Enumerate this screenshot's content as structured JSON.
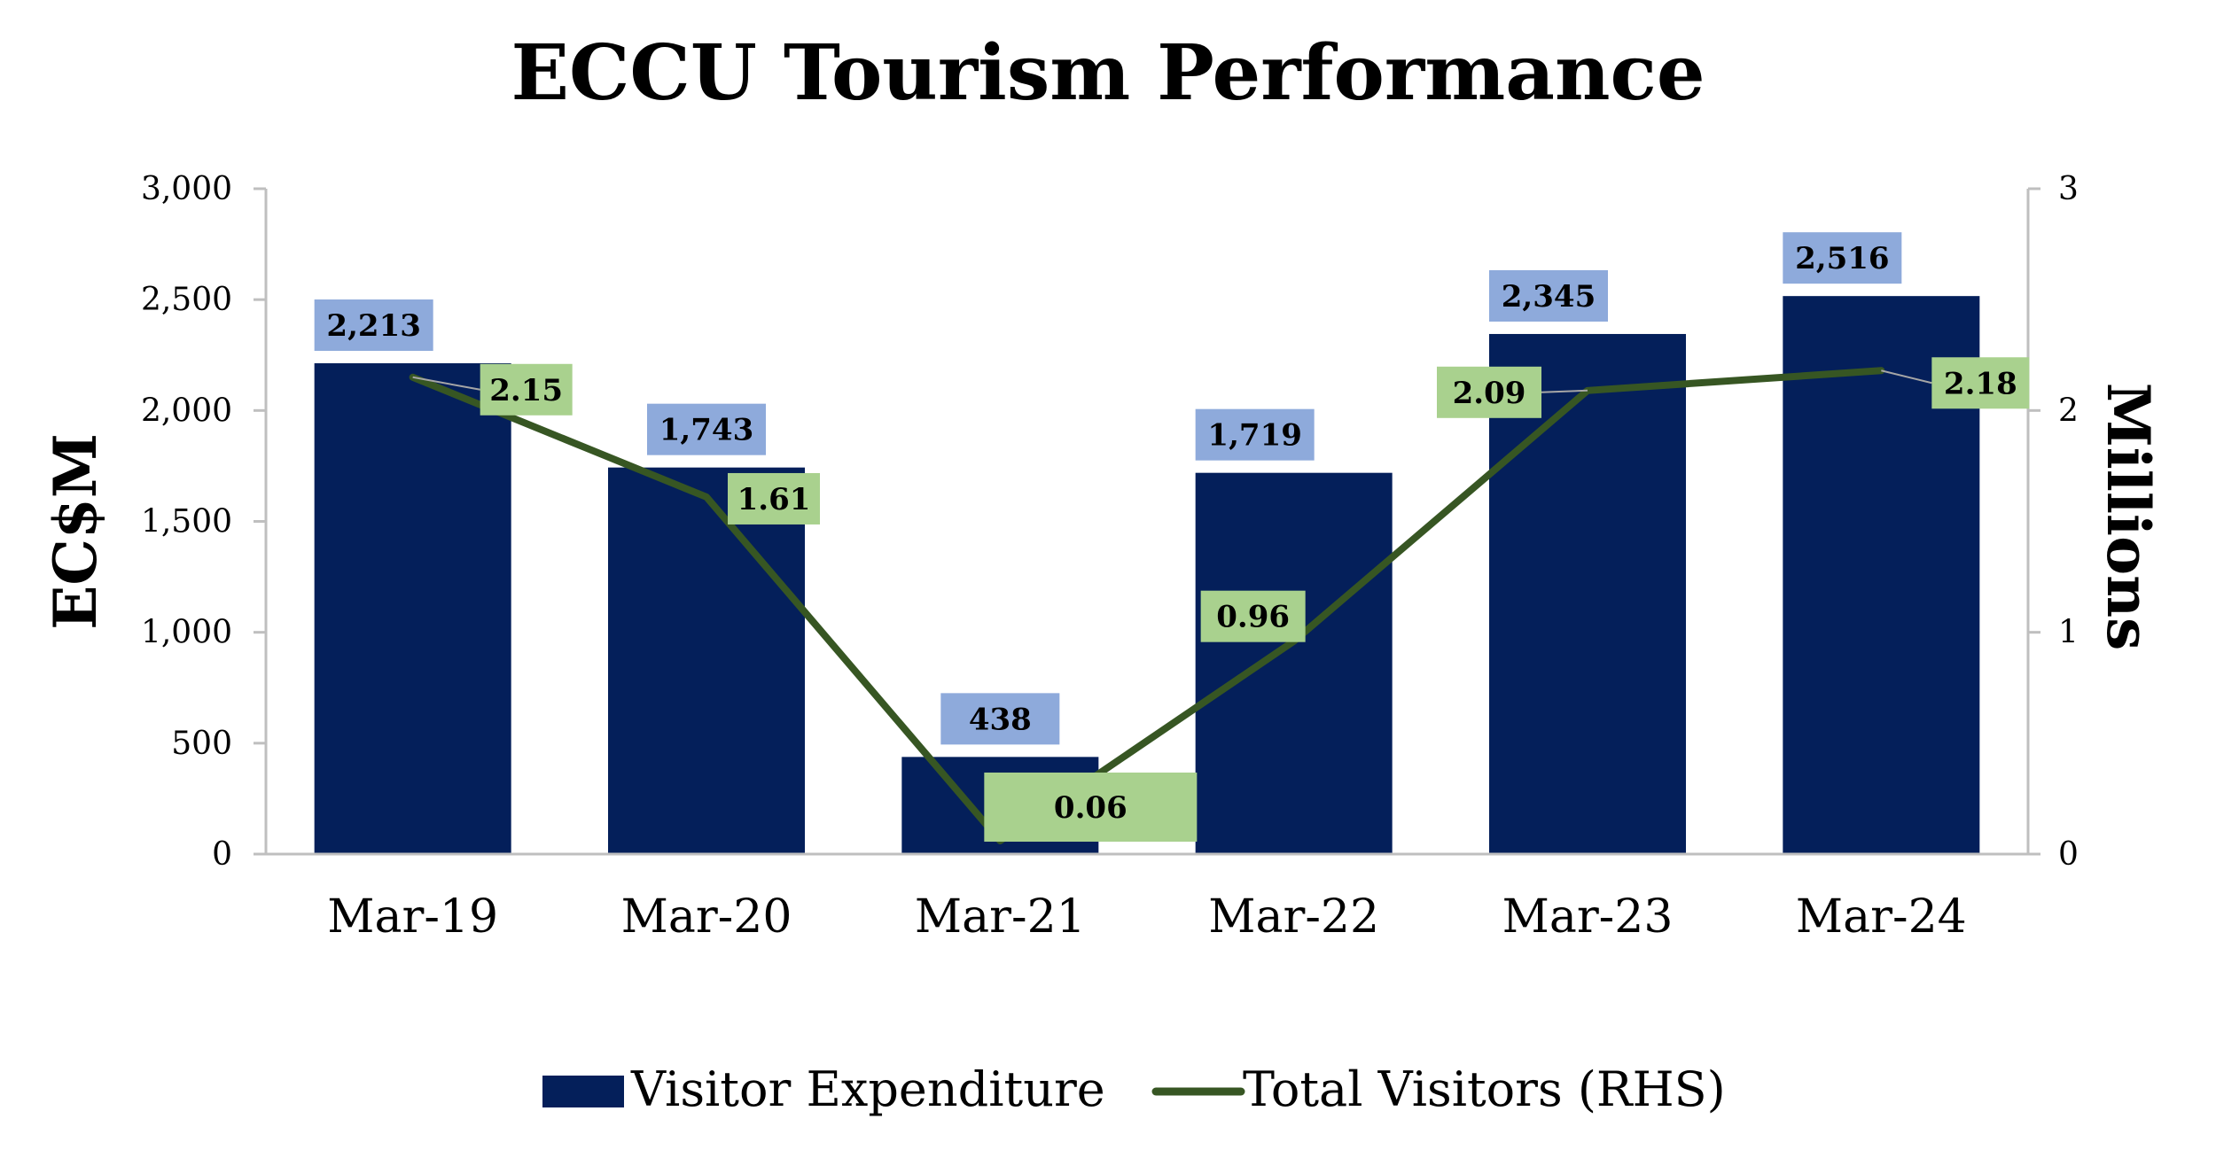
{
  "chart_data": {
    "type": "bar",
    "title": "ECCU Tourism Performance",
    "categories": [
      "Mar-19",
      "Mar-20",
      "Mar-21",
      "Mar-22",
      "Mar-23",
      "Mar-24"
    ],
    "ylabel": "EC$M",
    "y2label": "Millions",
    "ylim": [
      0,
      3000
    ],
    "y2lim": [
      0,
      3
    ],
    "yticks": [
      "0",
      "500",
      "1,000",
      "1,500",
      "2,000",
      "2,500",
      "3,000"
    ],
    "y2ticks": [
      "0",
      "1",
      "2",
      "3"
    ],
    "grid": false,
    "legend_position": "bottom",
    "series": [
      {
        "name": "Visitor Expenditure",
        "type": "bar",
        "axis": "left",
        "color": "#041f5a",
        "label_bg": "#8eaadb",
        "values": [
          2213,
          1743,
          438,
          1719,
          2345,
          2516
        ],
        "labels": [
          "2,213",
          "1,743",
          "438",
          "1,719",
          "2,345",
          "2,516"
        ]
      },
      {
        "name": "Total Visitors (RHS)",
        "type": "line",
        "axis": "right",
        "color": "#375623",
        "label_bg": "#a9d18e",
        "values": [
          2.15,
          1.61,
          0.06,
          0.96,
          2.09,
          2.18
        ],
        "labels": [
          "2.15",
          "1.61",
          "0.06",
          "0.96",
          "2.09",
          "2.18"
        ]
      }
    ]
  }
}
